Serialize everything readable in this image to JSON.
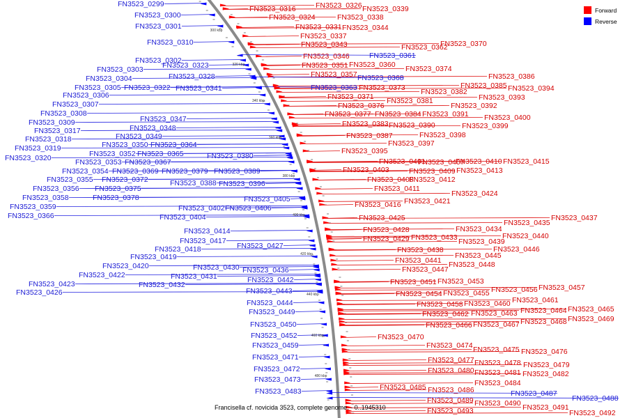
{
  "caption": "Francisella cf. novicida 3523, complete genome. - 0..1945310",
  "legend": [
    {
      "label": "Forward",
      "color": "#ff0000"
    },
    {
      "label": "Reverse",
      "color": "#0000ff"
    }
  ],
  "ticks": [
    "300 kbp",
    "320 kbp",
    "340 kbp",
    "360 kbp",
    "380 kbp",
    "400 kbp",
    "420 kbp",
    "440 kbp",
    "460 kbp",
    "480 kbp"
  ],
  "forward_genes": [
    "FN3523_0316",
    "FN3523_0326",
    "FN3523_0339",
    "FN3523_0324",
    "FN3523_0338",
    "FN3523_0331",
    "FN3523_0344",
    "FN3523_0337",
    "FN3523_0343",
    "FN3523_0362",
    "FN3523_0370",
    "FN3523_0346",
    "FN3523_0351",
    "FN3523_0360",
    "FN3523_0374",
    "FN3523_0357",
    "FN3523_0386",
    "FN3523_0373",
    "FN3523_0385",
    "FN3523_0394",
    "FN3523_0382",
    "FN3523_0371",
    "FN3523_0393",
    "FN3523_0381",
    "FN3523_0376",
    "FN3523_0392",
    "FN3523_0377",
    "FN3523_0384",
    "FN3523_0391",
    "FN3523_0400",
    "FN3523_0383",
    "FN3523_0390",
    "FN3523_0399",
    "FN3523_0398",
    "FN3523_0387",
    "FN3523_0397",
    "FN3523_0395",
    "FN3523_0401",
    "FN3523_0407",
    "FN3523_0410",
    "FN3523_0415",
    "FN3523_0403",
    "FN3523_0409",
    "FN3523_0413",
    "FN3523_0408",
    "FN3523_0412",
    "FN3523_0411",
    "FN3523_0424",
    "FN3523_0421",
    "FN3523_0416",
    "FN3523_0425",
    "FN3523_0437",
    "FN3523_0435",
    "FN3523_0428",
    "FN3523_0434",
    "FN3523_0433",
    "FN3523_0429",
    "FN3523_0440",
    "FN3523_0439",
    "FN3523_0438",
    "FN3523_0446",
    "FN3523_0445",
    "FN3523_0441",
    "FN3523_0448",
    "FN3523_0447",
    "FN3523_0451",
    "FN3523_0453",
    "FN3523_0457",
    "FN3523_0456",
    "FN3523_0454",
    "FN3523_0455",
    "FN3523_0461",
    "FN3523_0458",
    "FN3523_0460",
    "FN3523_0465",
    "FN3523_0464",
    "FN3523_0462",
    "FN3523_0463",
    "FN3523_0469",
    "FN3523_0468",
    "FN3523_0466",
    "FN3523_0467",
    "FN3523_0470",
    "FN3523_0474",
    "FN3523_0475",
    "FN3523_0476",
    "FN3523_0477",
    "FN3523_0478",
    "FN3523_0479",
    "FN3523_0480",
    "FN3523_0481",
    "FN3523_0482",
    "FN3523_0484",
    "FN3523_0485",
    "FN3523_0486",
    "FN3523_0489",
    "FN3523_0490",
    "FN3523_0491",
    "FN3523_0493",
    "FN3523_0492"
  ],
  "reverse_genes": [
    "FN3523_0299",
    "FN3523_0300",
    "FN3523_0301",
    "FN3523_0310",
    "FN3523_0302",
    "FN3523_0323",
    "FN3523_0303",
    "FN3523_0328",
    "FN3523_0304",
    "FN3523_0305",
    "FN3523_0322",
    "FN3523_0341",
    "FN3523_0306",
    "FN3523_0307",
    "FN3523_0308",
    "FN3523_0309",
    "FN3523_0317",
    "FN3523_0318",
    "FN3523_0319",
    "FN3523_0320",
    "FN3523_0347",
    "FN3523_0348",
    "FN3523_0349",
    "FN3523_0350",
    "FN3523_0364",
    "FN3523_0352",
    "FN3523_0365",
    "FN3523_0380",
    "FN3523_0353",
    "FN3523_0367",
    "FN3523_0354",
    "FN3523_0369",
    "FN3523_0379",
    "FN3523_0389",
    "FN3523_0355",
    "FN3523_0372",
    "FN3523_0356",
    "FN3523_0375",
    "FN3523_0388",
    "FN3523_0396",
    "FN3523_0358",
    "FN3523_0378",
    "FN3523_0359",
    "FN3523_0405",
    "FN3523_0366",
    "FN3523_0402",
    "FN3523_0406",
    "FN3523_0404",
    "FN3523_0361",
    "FN3523_0368",
    "FN3523_0363",
    "FN3523_0414",
    "FN3523_0417",
    "FN3523_0418",
    "FN3523_0427",
    "FN3523_0419",
    "FN3523_0420",
    "FN3523_0430",
    "FN3523_0436",
    "FN3523_0422",
    "FN3523_0431",
    "FN3523_0423",
    "FN3523_0442",
    "FN3523_0432",
    "FN3523_0426",
    "FN3523_0443",
    "FN3523_0444",
    "FN3523_0449",
    "FN3523_0450",
    "FN3523_0452",
    "FN3523_0459",
    "FN3523_0471",
    "FN3523_0472",
    "FN3523_0473",
    "FN3523_0483",
    "FN3523_0487",
    "FN3523_0488"
  ]
}
